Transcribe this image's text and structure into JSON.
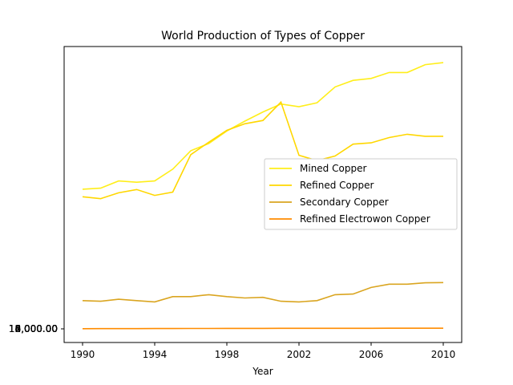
{
  "chart_data": {
    "type": "line",
    "title": "World Production of Types of Copper",
    "xlabel": "Year",
    "ylabel": "",
    "x": [
      1990,
      1991,
      1992,
      1993,
      1994,
      1995,
      1996,
      1997,
      1998,
      1999,
      2000,
      2001,
      2002,
      2003,
      2004,
      2005,
      2006,
      2007,
      2008,
      2009,
      2010
    ],
    "xticks": [
      "1990",
      "1994",
      "1998",
      "2002",
      "2006",
      "2010"
    ],
    "yticks_overlapping": [
      "2,000.00",
      "4,000.00",
      "6,000.00",
      "8,000.00",
      "10,000.00",
      "12,000.00",
      "14,000.00",
      "16,000.00"
    ],
    "grid": false,
    "legend_position": "center-right",
    "series": [
      {
        "name": "Mined Copper",
        "color": "#ffee1a",
        "values": [
          1.062,
          1.07,
          1.125,
          1.115,
          1.125,
          1.215,
          1.355,
          1.41,
          1.505,
          1.58,
          1.65,
          1.71,
          1.69,
          1.72,
          1.84,
          1.89,
          1.905,
          1.95,
          1.95,
          2.01,
          2.025
        ]
      },
      {
        "name": "Refined Copper",
        "color": "#ffd700",
        "values": [
          1.005,
          0.99,
          1.035,
          1.06,
          1.015,
          1.04,
          1.325,
          1.42,
          1.51,
          1.56,
          1.585,
          1.725,
          1.32,
          1.28,
          1.315,
          1.405,
          1.415,
          1.455,
          1.48,
          1.465,
          1.465
        ]
      },
      {
        "name": "Secondary Copper",
        "color": "#daa520",
        "values": [
          0.215,
          0.21,
          0.225,
          0.215,
          0.205,
          0.245,
          0.245,
          0.26,
          0.245,
          0.235,
          0.24,
          0.21,
          0.205,
          0.215,
          0.26,
          0.265,
          0.315,
          0.34,
          0.34,
          0.35,
          0.352
        ]
      },
      {
        "name": "Refined Electrowon Copper",
        "color": "#ff8c00",
        "values": [
          0.0015,
          0.0016,
          0.0018,
          0.002,
          0.0022,
          0.0025,
          0.0028,
          0.0032,
          0.0034,
          0.0036,
          0.0038,
          0.004,
          0.004,
          0.0041,
          0.0043,
          0.0044,
          0.0045,
          0.0046,
          0.0047,
          0.0048,
          0.0049
        ]
      }
    ]
  }
}
